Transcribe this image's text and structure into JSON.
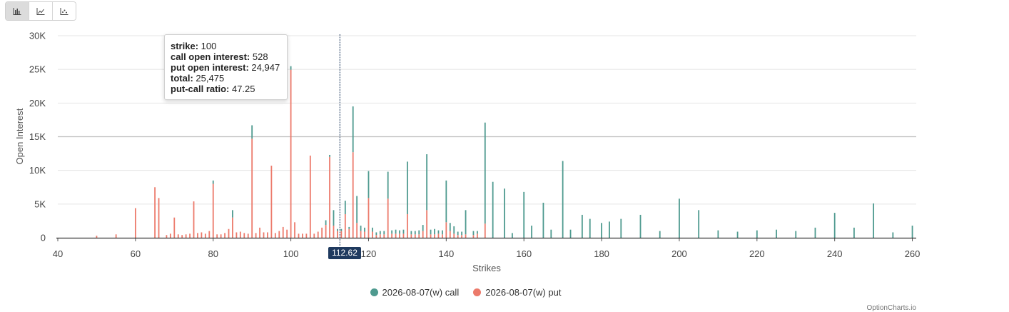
{
  "toolbar": {
    "buttons": [
      {
        "icon": "bar-chart-icon",
        "active": true
      },
      {
        "icon": "line-chart-icon",
        "active": false
      },
      {
        "icon": "scatter-chart-icon",
        "active": false
      }
    ]
  },
  "tooltip": {
    "strike_label": "strike:",
    "strike_value": "100",
    "call_label": "call open interest:",
    "call_value": "528",
    "put_label": "put open interest:",
    "put_value": "24,947",
    "total_label": "total:",
    "total_value": "25,475",
    "ratio_label": "put-call ratio:",
    "ratio_value": "47.25"
  },
  "price_marker": {
    "label": "112.62",
    "value": 112.62
  },
  "watermark": "OptionCharts.io",
  "colors": {
    "call": "#4e9a8f",
    "put": "#ec7a6b",
    "grid": "#e4e4e4",
    "highlight_line": "#bdbdbd",
    "marker": "#1f3a5f"
  },
  "chart_data": {
    "type": "bar",
    "stacked": true,
    "xlabel": "Strikes",
    "ylabel": "Open Interest",
    "xlim": [
      40,
      261
    ],
    "ylim": [
      0,
      30000
    ],
    "x_ticks": [
      40,
      60,
      80,
      100,
      120,
      140,
      160,
      180,
      200,
      220,
      240,
      260
    ],
    "x_tick_labels": [
      "40",
      "60",
      "80",
      "100",
      "120",
      "140",
      "160",
      "180",
      "200",
      "220",
      "240",
      "260"
    ],
    "y_ticks": [
      0,
      5000,
      10000,
      15000,
      20000,
      25000,
      30000
    ],
    "y_tick_labels": [
      "0",
      "5K",
      "10K",
      "15K",
      "20K",
      "25K",
      "30K"
    ],
    "highlight_y": 15000,
    "series": [
      {
        "name": "2026-08-07(w) call",
        "x": [
          50,
          55,
          60,
          65,
          66,
          68,
          69,
          70,
          71,
          72,
          73,
          74,
          75,
          76,
          77,
          78,
          79,
          80,
          81,
          82,
          83,
          84,
          85,
          86,
          87,
          88,
          89,
          90,
          91,
          92,
          93,
          94,
          95,
          96,
          97,
          98,
          99,
          100,
          101,
          102,
          103,
          104,
          105,
          106,
          107,
          108,
          109,
          110,
          111,
          112,
          113,
          114,
          115,
          116,
          117,
          118,
          119,
          120,
          121,
          122,
          123,
          124,
          125,
          126,
          127,
          128,
          129,
          130,
          131,
          132,
          133,
          134,
          135,
          136,
          137,
          138,
          139,
          140,
          141,
          142,
          143,
          144,
          145,
          147,
          148,
          150,
          152,
          155,
          157,
          160,
          162,
          165,
          167,
          170,
          172,
          175,
          177,
          180,
          182,
          185,
          190,
          195,
          200,
          205,
          210,
          215,
          220,
          225,
          230,
          235,
          240,
          245,
          250,
          255,
          260
        ],
        "values": [
          0,
          0,
          0,
          0,
          0,
          0,
          0,
          0,
          0,
          0,
          0,
          0,
          0,
          0,
          0,
          0,
          0,
          500,
          0,
          0,
          0,
          0,
          1100,
          0,
          0,
          0,
          0,
          2000,
          0,
          0,
          0,
          0,
          0,
          0,
          0,
          0,
          0,
          528,
          0,
          0,
          0,
          0,
          0,
          0,
          0,
          0,
          700,
          300,
          2300,
          300,
          300,
          2000,
          300,
          6800,
          4000,
          800,
          600,
          4000,
          600,
          400,
          500,
          500,
          4000,
          500,
          600,
          500,
          600,
          7800,
          500,
          500,
          600,
          900,
          8300,
          700,
          800,
          500,
          600,
          6200,
          1200,
          1100,
          500,
          500,
          3600,
          600,
          400,
          15000,
          8300,
          7300,
          700,
          6800,
          1800,
          5200,
          1200,
          11400,
          1200,
          3400,
          2800,
          2200,
          2400,
          2800,
          3400,
          1000,
          5800,
          4100,
          1100,
          900,
          1100,
          1200,
          1000,
          1500,
          3700,
          1500,
          5100,
          800,
          1800
        ]
      },
      {
        "name": "2026-08-07(w) put",
        "x": [
          50,
          55,
          60,
          65,
          66,
          68,
          69,
          70,
          71,
          72,
          73,
          74,
          75,
          76,
          77,
          78,
          79,
          80,
          81,
          82,
          83,
          84,
          85,
          86,
          87,
          88,
          89,
          90,
          91,
          92,
          93,
          94,
          95,
          96,
          97,
          98,
          99,
          100,
          101,
          102,
          103,
          104,
          105,
          106,
          107,
          108,
          109,
          110,
          111,
          112,
          113,
          114,
          115,
          116,
          117,
          118,
          119,
          120,
          121,
          122,
          123,
          124,
          125,
          126,
          127,
          128,
          129,
          130,
          131,
          132,
          133,
          134,
          135,
          136,
          137,
          138,
          139,
          140,
          141,
          142,
          143,
          144,
          145,
          147,
          148,
          150,
          152,
          155,
          157,
          160,
          162,
          165,
          167,
          170,
          172,
          175,
          177,
          180,
          182,
          185,
          190,
          195,
          200,
          205,
          210,
          215,
          220,
          225,
          230,
          235,
          240,
          245,
          250,
          255,
          260
        ],
        "values": [
          300,
          500,
          4400,
          7500,
          5900,
          400,
          600,
          3000,
          500,
          400,
          500,
          600,
          5400,
          700,
          800,
          600,
          1000,
          8000,
          500,
          500,
          700,
          1300,
          3000,
          800,
          900,
          700,
          600,
          14700,
          700,
          1500,
          800,
          800,
          10700,
          700,
          1000,
          1600,
          1200,
          24947,
          2300,
          600,
          600,
          600,
          12200,
          600,
          900,
          1500,
          1900,
          12000,
          1800,
          1000,
          1000,
          3500,
          1300,
          12700,
          2200,
          1000,
          900,
          5900,
          900,
          400,
          500,
          500,
          5800,
          600,
          600,
          600,
          600,
          3500,
          500,
          500,
          500,
          1000,
          4100,
          500,
          500,
          600,
          500,
          2300,
          1000,
          600,
          400,
          400,
          500,
          400,
          600,
          2100,
          0,
          0,
          0,
          0,
          0,
          0,
          0,
          0,
          0,
          0,
          0,
          0,
          0,
          0,
          0,
          0,
          0,
          0,
          0,
          0,
          0,
          0,
          0,
          0,
          0,
          0,
          0,
          0,
          0
        ]
      }
    ]
  }
}
